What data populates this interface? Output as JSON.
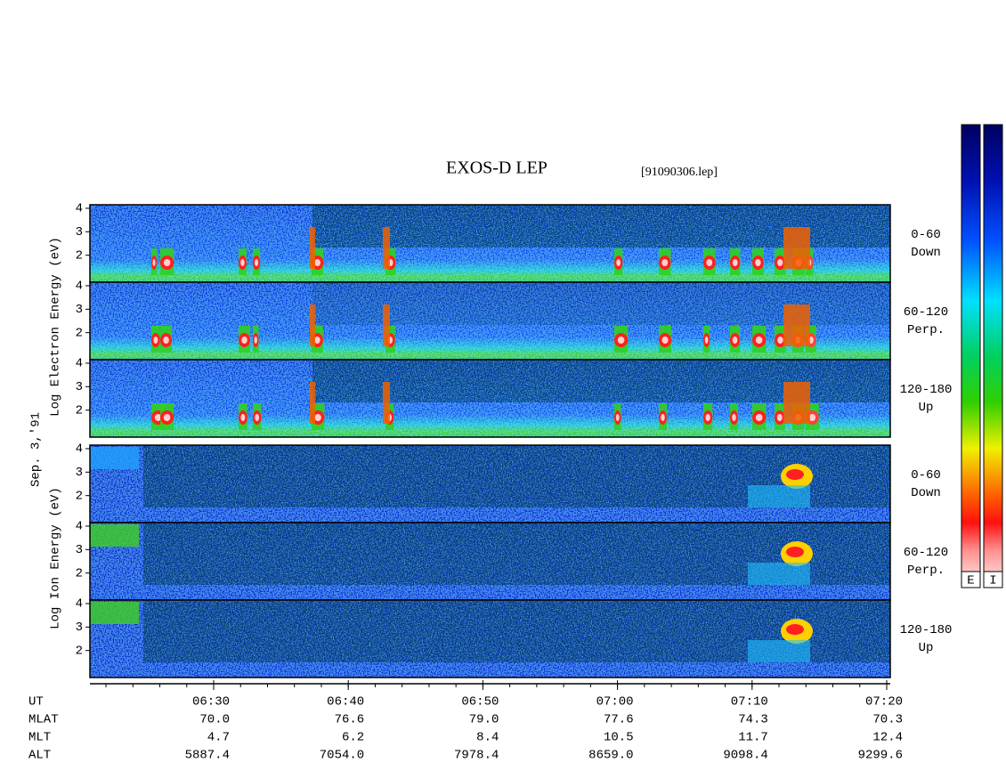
{
  "header": {
    "title": "EXOS-D LEP",
    "file": "[91090306.lep]"
  },
  "date": "Sep. 3,'91",
  "ylim": [
    0.85,
    4.15
  ],
  "yticks": [
    2,
    3,
    4
  ],
  "electron": {
    "axis_label": "Log Electron Energy (eV)",
    "panels": [
      {
        "angle": "0-60",
        "direction": "Down"
      },
      {
        "angle": "60-120",
        "direction": "Perp."
      },
      {
        "angle": "120-180",
        "direction": "Up"
      }
    ]
  },
  "ion": {
    "axis_label": "Log Ion Energy (eV)",
    "panels": [
      {
        "angle": "0-60",
        "direction": "Down"
      },
      {
        "angle": "60-120",
        "direction": "Perp."
      },
      {
        "angle": "120-180",
        "direction": "Up"
      }
    ]
  },
  "ephemeris": [
    {
      "label": "UT",
      "values": [
        "06:30",
        "06:40",
        "06:50",
        "07:00",
        "07:10",
        "07:20"
      ]
    },
    {
      "label": "MLAT",
      "values": [
        "70.0",
        "76.6",
        "79.0",
        "77.6",
        "74.3",
        "70.3"
      ]
    },
    {
      "label": "MLT",
      "values": [
        "4.7",
        "6.2",
        "8.4",
        "10.5",
        "11.7",
        "12.4"
      ]
    },
    {
      "label": "ALT",
      "values": [
        "5887.4",
        "7054.0",
        "7978.4",
        "8659.0",
        "9098.4",
        "9299.6"
      ]
    }
  ],
  "colorbars": [
    "E",
    "I"
  ]
}
